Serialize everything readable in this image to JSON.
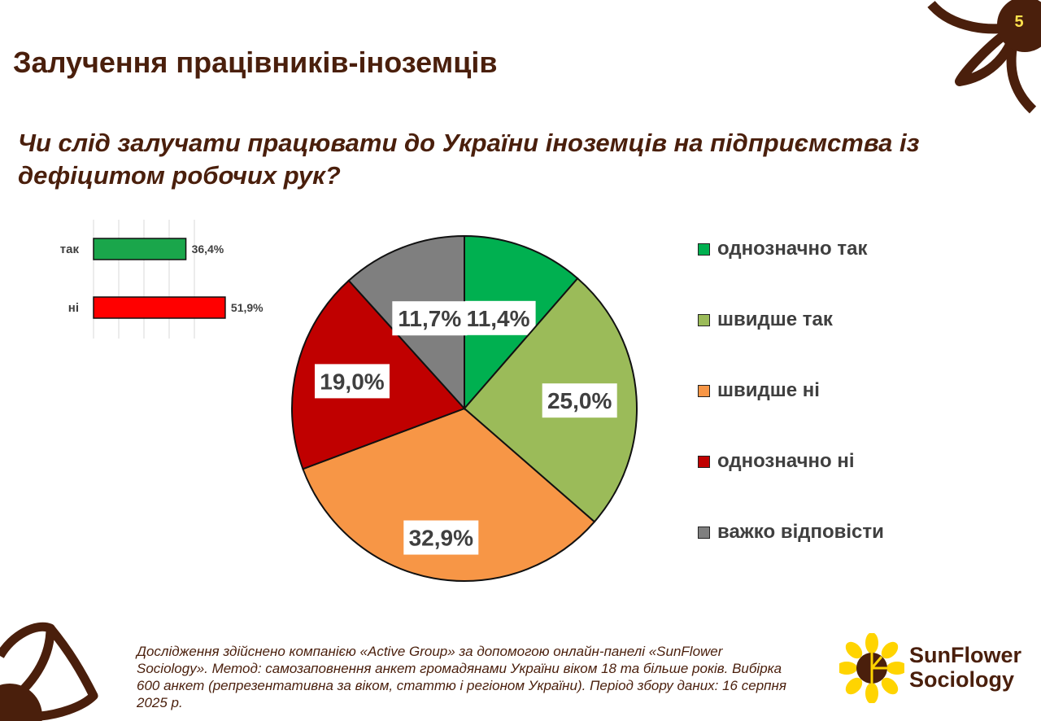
{
  "slide": {
    "page_number": "5",
    "title": "Залучення працівників-іноземців",
    "question": "Чи слід залучати працювати до України іноземців на підприємства із дефіцитом робочих рук?",
    "footnote": "Дослідження здійснено компанією «Active Group» за допомогою онлайн-панелі «SunFlower Sociology». Метод: самозаповнення анкет громадянами України віком 18 та більше років. Вибірка 600 анкет (репрезентативна за віком, статтю і регіоном України). Період збору даних: 16 серпня 2025 р."
  },
  "logo": {
    "line1": "SunFlower",
    "line2": "Sociology",
    "icon": "sunflower-logo-icon"
  },
  "decorations": {
    "top_right": "sunflower-corner-icon",
    "bottom_left": "sunflower-corner-icon"
  },
  "colors": {
    "brand_brown": "#4a1f0c",
    "page_number": "#ffe14d"
  },
  "chart_data": [
    {
      "type": "bar",
      "orientation": "horizontal",
      "categories": [
        "так",
        "ні"
      ],
      "values": [
        36.4,
        51.9
      ],
      "value_labels": [
        "36,4%",
        "51,9%"
      ],
      "colors": [
        "#1aa64b",
        "#ff0000"
      ],
      "xlim": [
        0,
        100
      ],
      "grid": true
    },
    {
      "type": "pie",
      "start": "12 o'clock",
      "direction": "clockwise",
      "categories": [
        "однозначно так",
        "швидше так",
        "швидше ні",
        "однозначно ні",
        "важко відповісти"
      ],
      "values": [
        11.4,
        25.0,
        32.9,
        19.0,
        11.7
      ],
      "value_labels": [
        "11,4%",
        "25,0%",
        "32,9%",
        "19,0%",
        "11,7%"
      ],
      "colors": [
        "#00b050",
        "#9bbb59",
        "#f79646",
        "#c00000",
        "#7f7f7f"
      ],
      "legend_position": "right"
    }
  ]
}
